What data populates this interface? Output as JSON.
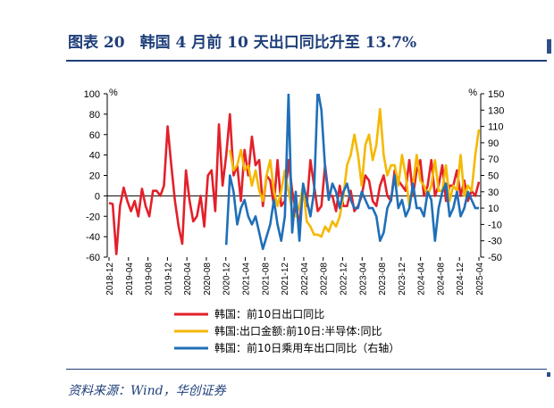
{
  "title": "图表 20　韩国 4 月前 10 天出口同比升至 13.7%",
  "source": "资料来源：Wind，华创证券",
  "chart_data": {
    "type": "line",
    "left_axis": {
      "unit": "%",
      "range": [
        -60,
        100
      ],
      "ticks": [
        100,
        80,
        60,
        40,
        20,
        0,
        -20,
        -40,
        -60
      ]
    },
    "right_axis": {
      "unit": "%",
      "range": [
        -50,
        150
      ],
      "ticks": [
        150,
        130,
        110,
        90,
        70,
        50,
        30,
        10,
        -10,
        -30,
        -50
      ]
    },
    "x_tick_labels": [
      "2018-12",
      "2019-04",
      "2019-08",
      "2019-12",
      "2020-04",
      "2020-08",
      "2020-12",
      "2021-04",
      "2021-08",
      "2021-12",
      "2022-04",
      "2022-08",
      "2022-12",
      "2023-04",
      "2023-08",
      "2023-12",
      "2024-04",
      "2024-08",
      "2024-12",
      "2025-04"
    ],
    "x_start": "2018-12",
    "x_end": "2025-04",
    "series": [
      {
        "name": "韩国：前10日出口同比",
        "axis": "left",
        "color": "#e3202a",
        "values": [
          -7,
          -8,
          -57,
          -10,
          8,
          -5,
          -15,
          -5,
          -20,
          7,
          -10,
          -20,
          5,
          5,
          0,
          10,
          68,
          30,
          -5,
          -30,
          -47,
          25,
          -5,
          -25,
          -20,
          0,
          -30,
          20,
          25,
          -15,
          70,
          10,
          40,
          80,
          20,
          30,
          -5,
          45,
          20,
          58,
          30,
          35,
          -10,
          20,
          15,
          -10,
          35,
          -10,
          -5,
          35,
          5,
          -15,
          -25,
          5,
          -10,
          35,
          10,
          -15,
          -10,
          30,
          0,
          0,
          -15,
          10,
          -10,
          -10,
          5,
          -15,
          -10,
          0,
          20,
          15,
          -5,
          -10,
          10,
          20,
          0,
          -5,
          25,
          15,
          10,
          5,
          35,
          0,
          25,
          35,
          0,
          10,
          35,
          0,
          10,
          30,
          -5,
          10,
          10,
          25,
          0,
          15,
          -5,
          5,
          0,
          13.7
        ]
      },
      {
        "name": "韩国:出口金额:前10日:半导体:同比",
        "axis": "left",
        "color": "#f5b800",
        "values": [
          null,
          null,
          null,
          null,
          null,
          null,
          null,
          null,
          null,
          null,
          null,
          null,
          null,
          null,
          null,
          null,
          null,
          null,
          null,
          null,
          null,
          null,
          null,
          null,
          null,
          null,
          null,
          null,
          null,
          null,
          null,
          null,
          null,
          45,
          25,
          30,
          45,
          25,
          30,
          10,
          25,
          5,
          -5,
          20,
          35,
          5,
          -10,
          5,
          25,
          5,
          -15,
          -20,
          -10,
          10,
          -25,
          -30,
          -38,
          -38,
          -40,
          -30,
          -35,
          -25,
          -30,
          -20,
          0,
          30,
          40,
          60,
          40,
          10,
          50,
          60,
          35,
          50,
          85,
          40,
          20,
          30,
          30,
          10,
          40,
          20,
          -10,
          10,
          40,
          15,
          10,
          0,
          10,
          35,
          5,
          5,
          30,
          -5,
          10,
          5,
          40,
          0,
          10,
          5,
          40,
          65
        ]
      },
      {
        "name": "韩国：前10日乘用车出口同比（右轴）",
        "axis": "right",
        "color": "#1f6fb8",
        "values": [
          null,
          null,
          null,
          null,
          null,
          null,
          null,
          null,
          null,
          null,
          null,
          null,
          null,
          null,
          null,
          null,
          null,
          null,
          null,
          null,
          null,
          null,
          null,
          null,
          null,
          null,
          null,
          null,
          null,
          null,
          null,
          null,
          -35,
          50,
          30,
          -10,
          10,
          20,
          0,
          -10,
          0,
          -20,
          -40,
          -25,
          -10,
          20,
          -10,
          -30,
          0,
          150,
          -20,
          30,
          -30,
          40,
          20,
          0,
          30,
          160,
          130,
          60,
          20,
          40,
          30,
          10,
          30,
          40,
          20,
          10,
          10,
          30,
          20,
          10,
          10,
          0,
          -30,
          -20,
          10,
          20,
          50,
          10,
          20,
          0,
          10,
          40,
          10,
          10,
          0,
          30,
          20,
          -30,
          10,
          30,
          40,
          0,
          10,
          30,
          0,
          10,
          30,
          20,
          10,
          10
        ]
      }
    ]
  }
}
